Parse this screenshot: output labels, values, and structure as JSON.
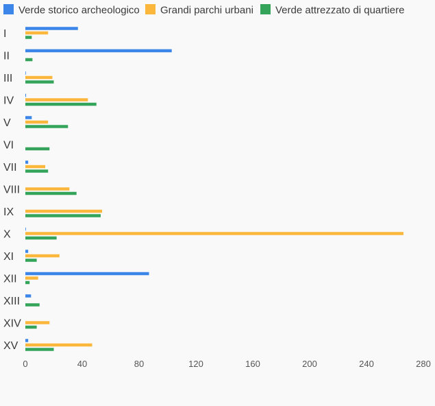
{
  "chart_data": {
    "type": "bar",
    "orientation": "horizontal",
    "categories": [
      "I",
      "II",
      "III",
      "IV",
      "V",
      "VI",
      "VII",
      "VIII",
      "IX",
      "X",
      "XI",
      "XII",
      "XIII",
      "XIV",
      "XV"
    ],
    "series": [
      {
        "name": "Verde storico archeologico",
        "color": "#3b86e8",
        "values": [
          37,
          103,
          0.3,
          0.5,
          4.5,
          0,
          2,
          0,
          0,
          0.4,
          2,
          87,
          4,
          0,
          2
        ]
      },
      {
        "name": "Grandi parchi urbani",
        "color": "#fbb73b",
        "values": [
          16,
          0,
          19,
          44,
          16,
          0,
          14,
          31,
          54,
          266,
          24,
          9,
          0,
          17,
          47
        ]
      },
      {
        "name": "Verde attrezzato di quartiere",
        "color": "#34a45a",
        "values": [
          4.5,
          5,
          20,
          50,
          30,
          17,
          16,
          36,
          53,
          22,
          8,
          3,
          10,
          8,
          20
        ]
      }
    ],
    "xlim": [
      0,
      280
    ],
    "xticks": [
      0,
      40,
      80,
      120,
      160,
      200,
      240,
      280
    ],
    "grid": false,
    "legend": "top-left",
    "title": "",
    "xlabel": "",
    "ylabel": ""
  }
}
